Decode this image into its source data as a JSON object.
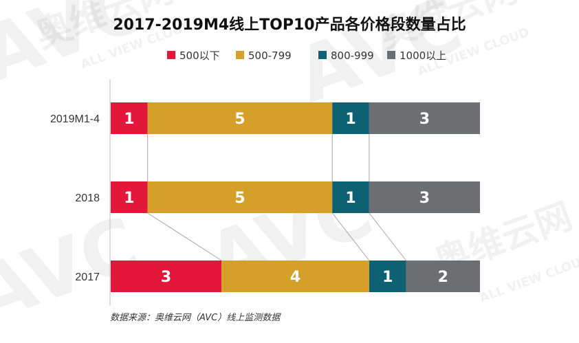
{
  "chart_data": {
    "type": "bar",
    "orientation": "horizontal",
    "stacked": true,
    "title": "2017-2019M4线上TOP10产品各价格段数量占比",
    "categories": [
      "2019M1-4",
      "2018",
      "2017"
    ],
    "series": [
      {
        "name": "500以下",
        "color": "#e2173a",
        "values": [
          1,
          1,
          3
        ]
      },
      {
        "name": "500-799",
        "color": "#d4a02a",
        "values": [
          5,
          5,
          4
        ]
      },
      {
        "name": "800-999",
        "color": "#0e6172",
        "values": [
          1,
          1,
          1
        ]
      },
      {
        "name": "1000以上",
        "color": "#6d6e71",
        "values": [
          3,
          3,
          2
        ]
      }
    ],
    "xlim": [
      0,
      10
    ],
    "legend_position": "top",
    "grid": false,
    "source_note": "数据来源：奥维云网（AVC）线上监测数据"
  },
  "watermark": {
    "brand_cn": "奥维云网",
    "brand_en": "ALL VIEW CLOUD",
    "logo": "AVC"
  }
}
